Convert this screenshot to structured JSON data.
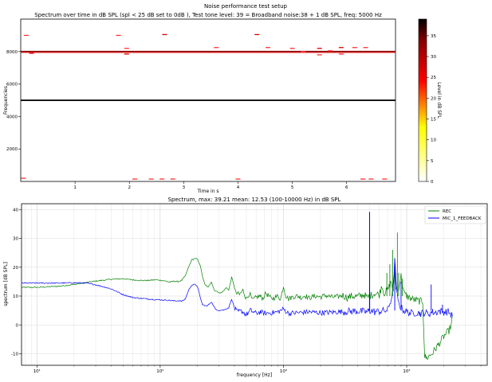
{
  "figure": {
    "title": "Noise performance test setup"
  },
  "chart_data": [
    {
      "type": "heatmap",
      "title": "Spectrum over time in dB SPL (spl < 25 dB set to 0dB ), Test tone level: 39 = Broadband noise:38 + 1 dB SPL, freq: 5000 Hz",
      "xlabel": "Time in s",
      "ylabel": "Frequencies",
      "xlim": [
        0,
        6.9
      ],
      "ylim": [
        0,
        10000
      ],
      "xticks": [
        1,
        2,
        3,
        4,
        5,
        6
      ],
      "yticks": [
        2000,
        4000,
        6000,
        8000
      ],
      "colorbar": {
        "label": "Level in dB SPL",
        "range": [
          0,
          39
        ],
        "ticks": [
          0,
          5,
          10,
          15,
          20,
          25,
          30,
          35
        ],
        "colormap": "hot_r"
      },
      "bands": [
        {
          "freq": 5000,
          "level": 39,
          "t_start": 0.0,
          "t_end": 6.9
        },
        {
          "freq": 8000,
          "level": 34,
          "t_start": 0.0,
          "t_end": 6.9
        }
      ],
      "specks": [
        {
          "t": 0.1,
          "f": 9000,
          "level": 28
        },
        {
          "t": 0.2,
          "f": 7900,
          "level": 29
        },
        {
          "t": 0.05,
          "f": 200,
          "level": 27
        },
        {
          "t": 1.8,
          "f": 9000,
          "level": 28
        },
        {
          "t": 1.95,
          "f": 8200,
          "level": 27
        },
        {
          "t": 1.95,
          "f": 7850,
          "level": 29
        },
        {
          "t": 2.1,
          "f": 150,
          "level": 26
        },
        {
          "t": 2.4,
          "f": 150,
          "level": 27
        },
        {
          "t": 2.6,
          "f": 150,
          "level": 26
        },
        {
          "t": 2.65,
          "f": 9050,
          "level": 30
        },
        {
          "t": 2.8,
          "f": 150,
          "level": 26
        },
        {
          "t": 3.6,
          "f": 8250,
          "level": 28
        },
        {
          "t": 4.0,
          "f": 150,
          "level": 27
        },
        {
          "t": 4.35,
          "f": 9050,
          "level": 30
        },
        {
          "t": 4.55,
          "f": 8250,
          "level": 28
        },
        {
          "t": 5.0,
          "f": 8200,
          "level": 27
        },
        {
          "t": 5.2,
          "f": 8000,
          "level": 28
        },
        {
          "t": 5.5,
          "f": 8200,
          "level": 29
        },
        {
          "t": 5.5,
          "f": 7800,
          "level": 28
        },
        {
          "t": 5.7,
          "f": 8050,
          "level": 27
        },
        {
          "t": 5.9,
          "f": 8250,
          "level": 29
        },
        {
          "t": 5.9,
          "f": 7850,
          "level": 28
        },
        {
          "t": 6.15,
          "f": 8250,
          "level": 27
        },
        {
          "t": 6.35,
          "f": 8250,
          "level": 28
        },
        {
          "t": 6.3,
          "f": 150,
          "level": 27
        },
        {
          "t": 6.45,
          "f": 150,
          "level": 26
        },
        {
          "t": 6.7,
          "f": 150,
          "level": 26
        }
      ]
    },
    {
      "type": "line",
      "title": "Spectrum, max: 39.21 mean: 12.53 (100-10000 Hz) in dB SPL",
      "xlabel": "frequency [Hz]",
      "ylabel": "spectrum [dB SPL]",
      "xscale": "log",
      "xlim": [
        7.5,
        45000
      ],
      "ylim": [
        -14,
        42
      ],
      "xticks": [
        10,
        100,
        1000,
        10000
      ],
      "xtick_labels": [
        "10¹",
        "10²",
        "10³",
        "10⁴"
      ],
      "yticks": [
        -10,
        0,
        10,
        20,
        30,
        40
      ],
      "grid": true,
      "legend": "top-right",
      "series": [
        {
          "name": "REC",
          "color": "#008000",
          "points": [
            [
              7.5,
              13
            ],
            [
              10,
              13
            ],
            [
              15,
              13.4
            ],
            [
              20,
              14
            ],
            [
              30,
              15.2
            ],
            [
              40,
              15.8
            ],
            [
              50,
              16
            ],
            [
              60,
              15.6
            ],
            [
              70,
              15.4
            ],
            [
              80,
              15.4
            ],
            [
              90,
              15.6
            ],
            [
              100,
              15.5
            ],
            [
              110,
              15.2
            ],
            [
              120,
              14.8
            ],
            [
              130,
              15.2
            ],
            [
              140,
              15
            ],
            [
              150,
              15.5
            ],
            [
              160,
              17
            ],
            [
              170,
              20
            ],
            [
              180,
              22.5
            ],
            [
              190,
              23
            ],
            [
              200,
              22.8
            ],
            [
              210,
              21
            ],
            [
              220,
              17
            ],
            [
              230,
              14
            ],
            [
              245,
              13
            ],
            [
              260,
              15
            ],
            [
              275,
              12
            ],
            [
              290,
              11.5
            ],
            [
              310,
              11
            ],
            [
              330,
              12
            ],
            [
              345,
              13
            ],
            [
              360,
              12
            ],
            [
              380,
              16.5
            ],
            [
              395,
              14
            ],
            [
              410,
              11
            ],
            [
              440,
              10.5
            ],
            [
              470,
              12
            ],
            [
              500,
              9
            ],
            [
              530,
              11
            ],
            [
              560,
              8.5
            ],
            [
              600,
              9.5
            ],
            [
              640,
              10
            ],
            [
              680,
              9.2
            ],
            [
              720,
              11
            ],
            [
              760,
              10
            ],
            [
              800,
              9
            ],
            [
              850,
              9.5
            ],
            [
              900,
              10
            ],
            [
              950,
              9
            ],
            [
              1000,
              13.5
            ],
            [
              1050,
              10
            ],
            [
              1100,
              9
            ],
            [
              1200,
              9.8
            ],
            [
              1300,
              10
            ],
            [
              1400,
              9.5
            ],
            [
              1500,
              10.2
            ],
            [
              1600,
              9.3
            ],
            [
              1800,
              10
            ],
            [
              2000,
              9.7
            ],
            [
              2200,
              10.2
            ],
            [
              2500,
              9.6
            ],
            [
              2800,
              9.8
            ],
            [
              3000,
              10.3
            ],
            [
              3300,
              9.5
            ],
            [
              3600,
              10
            ],
            [
              4000,
              9.8
            ],
            [
              4500,
              10.5
            ],
            [
              4800,
              9.5
            ],
            [
              5000,
              10
            ],
            [
              5500,
              11
            ],
            [
              6000,
              10.5
            ],
            [
              6300,
              14
            ],
            [
              6500,
              11
            ],
            [
              7000,
              12
            ],
            [
              7500,
              15
            ],
            [
              7800,
              11
            ],
            [
              8000,
              20
            ],
            [
              8200,
              13
            ],
            [
              8500,
              12
            ],
            [
              9000,
              17
            ],
            [
              9500,
              11
            ],
            [
              10000,
              10
            ],
            [
              11000,
              9
            ],
            [
              12000,
              8.5
            ],
            [
              13000,
              8.2
            ],
            [
              13500,
              8
            ],
            [
              14000,
              -11
            ],
            [
              14500,
              -11.5
            ],
            [
              16000,
              -10
            ],
            [
              18000,
              -7
            ],
            [
              20000,
              -4
            ],
            [
              22000,
              -2
            ],
            [
              23000,
              0
            ],
            [
              23500,
              3
            ]
          ]
        },
        {
          "name": "MIC_1_FEEDBACK",
          "color": "#0000ff",
          "points": [
            [
              7.5,
              14.5
            ],
            [
              10,
              14.5
            ],
            [
              15,
              14.5
            ],
            [
              20,
              14.6
            ],
            [
              25,
              14.5
            ],
            [
              30,
              13.9
            ],
            [
              40,
              12.5
            ],
            [
              50,
              10.5
            ],
            [
              60,
              9.5
            ],
            [
              70,
              9.2
            ],
            [
              80,
              9
            ],
            [
              90,
              8.8
            ],
            [
              100,
              8.7
            ],
            [
              110,
              8.6
            ],
            [
              120,
              8.5
            ],
            [
              130,
              8.3
            ],
            [
              140,
              8.4
            ],
            [
              150,
              8.2
            ],
            [
              160,
              9
            ],
            [
              170,
              12
            ],
            [
              180,
              13.8
            ],
            [
              190,
              14
            ],
            [
              200,
              13.5
            ],
            [
              210,
              10
            ],
            [
              220,
              7
            ],
            [
              240,
              6.5
            ],
            [
              260,
              8
            ],
            [
              280,
              5.5
            ],
            [
              300,
              5
            ],
            [
              330,
              5.2
            ],
            [
              360,
              6
            ],
            [
              380,
              9
            ],
            [
              400,
              6
            ],
            [
              420,
              4.5
            ],
            [
              460,
              4.8
            ],
            [
              500,
              3.5
            ],
            [
              540,
              5
            ],
            [
              600,
              4
            ],
            [
              650,
              4.5
            ],
            [
              700,
              4
            ],
            [
              800,
              4.2
            ],
            [
              900,
              4.5
            ],
            [
              1000,
              5.5
            ],
            [
              1100,
              4
            ],
            [
              1300,
              4.2
            ],
            [
              1600,
              4.5
            ],
            [
              2000,
              4.2
            ],
            [
              2500,
              4.4
            ],
            [
              3000,
              4.6
            ],
            [
              4000,
              4.8
            ],
            [
              4800,
              4.5
            ],
            [
              4980,
              5
            ],
            [
              5000,
              39.2
            ],
            [
              5020,
              5
            ],
            [
              5500,
              4.5
            ],
            [
              6000,
              4.7
            ],
            [
              7000,
              5
            ],
            [
              7500,
              9
            ],
            [
              7800,
              14
            ],
            [
              8000,
              23
            ],
            [
              8200,
              14
            ],
            [
              8500,
              8
            ],
            [
              9000,
              6
            ],
            [
              9500,
              5
            ],
            [
              10000,
              4.5
            ],
            [
              11000,
              4
            ],
            [
              12000,
              4.3
            ],
            [
              13000,
              4
            ],
            [
              14000,
              4.2
            ],
            [
              15000,
              3.8
            ],
            [
              16000,
              4.5
            ],
            [
              17000,
              4.2
            ],
            [
              18000,
              4.8
            ],
            [
              20000,
              4.5
            ],
            [
              22000,
              4.5
            ],
            [
              23500,
              3
            ]
          ],
          "spikes": [
            [
              5000,
              39.2
            ],
            [
              8000,
              23
            ],
            [
              9000,
              15
            ],
            [
              15800,
              14
            ],
            [
              19500,
              7
            ],
            [
              12300,
              5
            ]
          ]
        }
      ]
    }
  ]
}
